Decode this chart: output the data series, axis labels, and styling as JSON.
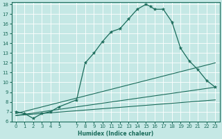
{
  "xlabel": "Humidex (Indice chaleur)",
  "xlim": [
    -0.5,
    23.5
  ],
  "ylim": [
    6,
    18.2
  ],
  "yticks": [
    6,
    7,
    8,
    9,
    10,
    11,
    12,
    13,
    14,
    15,
    16,
    17,
    18
  ],
  "xticks": [
    0,
    1,
    2,
    3,
    4,
    5,
    7,
    8,
    9,
    10,
    11,
    12,
    13,
    14,
    15,
    16,
    17,
    18,
    19,
    20,
    21,
    22,
    23
  ],
  "bg_color": "#c5e8e5",
  "line_color": "#1a6b5a",
  "main_x": [
    0,
    1,
    2,
    3,
    4,
    5,
    7,
    8,
    9,
    10,
    11,
    12,
    13,
    14,
    15,
    15.5,
    16,
    17,
    18,
    19,
    20,
    21,
    22,
    23
  ],
  "main_y": [
    7.0,
    6.8,
    6.3,
    6.8,
    7.0,
    7.5,
    8.2,
    12.0,
    13.0,
    14.2,
    15.2,
    15.5,
    16.5,
    17.5,
    18.0,
    17.8,
    17.5,
    17.5,
    16.2,
    13.5,
    12.2,
    11.3,
    10.2,
    9.5
  ],
  "line1_x": [
    0,
    23
  ],
  "line1_y": [
    6.6,
    8.2
  ],
  "line2_x": [
    0,
    23
  ],
  "line2_y": [
    6.6,
    9.5
  ],
  "line3_x": [
    0,
    23
  ],
  "line3_y": [
    6.8,
    12.0
  ]
}
